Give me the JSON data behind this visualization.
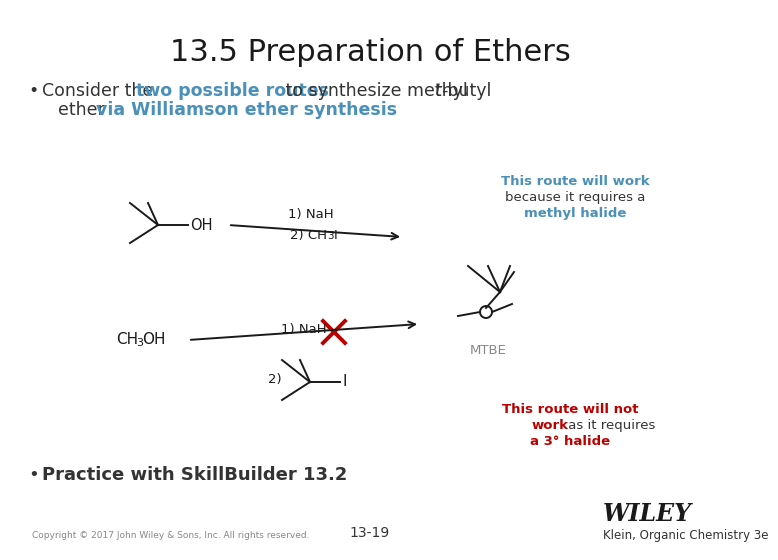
{
  "title": "13.5 Preparation of Ethers",
  "title_fontsize": 22,
  "bg_color": "#ffffff",
  "blue_color": "#4a90b8",
  "red_color": "#bb0000",
  "gray_color": "#888888",
  "black_color": "#1a1a1a",
  "dark_color": "#333333",
  "footer_copyright": "Copyright © 2017 John Wiley & Sons, Inc. All rights reserved.",
  "footer_page": "13-19",
  "footer_publisher": "WILEY",
  "footer_book": "Klein, Organic Chemistry 3e",
  "route1_label1": "1) NaH",
  "route1_label2": "2) CH",
  "route1_label2b": "3",
  "route1_label2c": "I",
  "route2_label1": "1) NaH",
  "route2_label2": "2)",
  "mtbe_label": "MTBE",
  "ch3oh_label": "CH",
  "ch3oh_sub": "3",
  "ch3oh_rest": "OH",
  "annotation1_line1": "This route will work",
  "annotation1_line2": "because it requires a",
  "annotation1_line3": "methyl halide",
  "annotation2_line1": "This route will not",
  "annotation2_line2": "work",
  "annotation2_line2b": " as it requires",
  "annotation2_line3": "a 3° halide"
}
